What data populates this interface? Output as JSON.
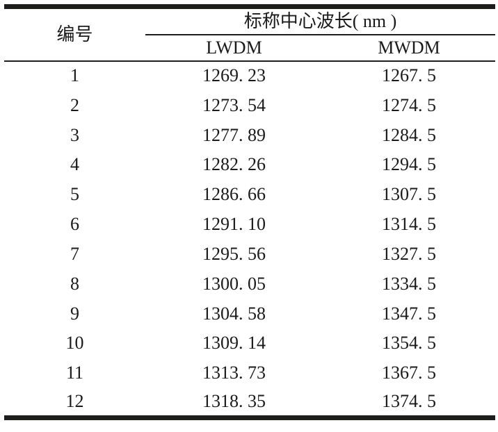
{
  "table": {
    "header": {
      "number": "编号",
      "group": "标称中心波长( nm )",
      "lwdm": "LWDM",
      "mwdm": "MWDM"
    },
    "rows": [
      {
        "id": "1",
        "lwdm": "1269. 23",
        "mwdm": "1267. 5"
      },
      {
        "id": "2",
        "lwdm": "1273. 54",
        "mwdm": "1274. 5"
      },
      {
        "id": "3",
        "lwdm": "1277. 89",
        "mwdm": "1284. 5"
      },
      {
        "id": "4",
        "lwdm": "1282. 26",
        "mwdm": "1294. 5"
      },
      {
        "id": "5",
        "lwdm": "1286. 66",
        "mwdm": "1307. 5"
      },
      {
        "id": "6",
        "lwdm": "1291. 10",
        "mwdm": "1314. 5"
      },
      {
        "id": "7",
        "lwdm": "1295. 56",
        "mwdm": "1327. 5"
      },
      {
        "id": "8",
        "lwdm": "1300. 05",
        "mwdm": "1334. 5"
      },
      {
        "id": "9",
        "lwdm": "1304. 58",
        "mwdm": "1347. 5"
      },
      {
        "id": "10",
        "lwdm": "1309. 14",
        "mwdm": "1354. 5"
      },
      {
        "id": "11",
        "lwdm": "1313. 73",
        "mwdm": "1367. 5"
      },
      {
        "id": "12",
        "lwdm": "1318. 35",
        "mwdm": "1374. 5"
      }
    ]
  },
  "colors": {
    "background": "#ffffff",
    "text": "#1a1a1a",
    "rule": "#1d1d1b"
  }
}
